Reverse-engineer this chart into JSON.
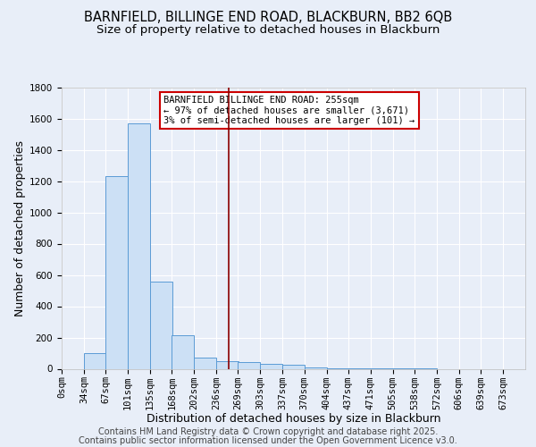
{
  "title1": "BARNFIELD, BILLINGE END ROAD, BLACKBURN, BB2 6QB",
  "title2": "Size of property relative to detached houses in Blackburn",
  "xlabel": "Distribution of detached houses by size in Blackburn",
  "ylabel": "Number of detached properties",
  "bin_labels": [
    "0sqm",
    "34sqm",
    "67sqm",
    "101sqm",
    "135sqm",
    "168sqm",
    "202sqm",
    "236sqm",
    "269sqm",
    "303sqm",
    "337sqm",
    "370sqm",
    "404sqm",
    "437sqm",
    "471sqm",
    "505sqm",
    "538sqm",
    "572sqm",
    "606sqm",
    "639sqm",
    "673sqm"
  ],
  "bin_edges": [
    0,
    34,
    67,
    101,
    135,
    168,
    202,
    236,
    269,
    303,
    337,
    370,
    404,
    437,
    471,
    505,
    538,
    572,
    606,
    639,
    673
  ],
  "bar_heights": [
    0,
    100,
    1230,
    1570,
    560,
    215,
    70,
    50,
    45,
    30,
    25,
    10,
    5,
    3,
    2,
    1,
    1,
    0,
    0,
    0
  ],
  "bar_color": "#cce0f5",
  "bar_edge_color": "#5b9bd5",
  "vline_x": 255,
  "vline_color": "#8b0000",
  "ylim": [
    0,
    1800
  ],
  "yticks": [
    0,
    200,
    400,
    600,
    800,
    1000,
    1200,
    1400,
    1600,
    1800
  ],
  "bg_color": "#e8eef8",
  "grid_color": "#ffffff",
  "annotation_title": "BARNFIELD BILLINGE END ROAD: 255sqm",
  "annotation_line1": "← 97% of detached houses are smaller (3,671)",
  "annotation_line2": "3% of semi-detached houses are larger (101) →",
  "annotation_box_color": "#ffffff",
  "annotation_box_edge": "#cc0000",
  "footer1": "Contains HM Land Registry data © Crown copyright and database right 2025.",
  "footer2": "Contains public sector information licensed under the Open Government Licence v3.0.",
  "title_fontsize": 10.5,
  "subtitle_fontsize": 9.5,
  "axis_label_fontsize": 9,
  "tick_fontsize": 7.5,
  "footer_fontsize": 7,
  "ann_fontsize": 7.5
}
